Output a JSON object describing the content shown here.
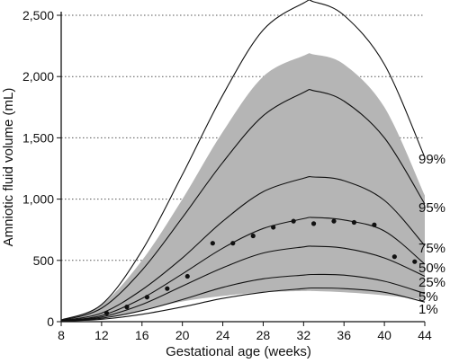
{
  "chart_data": {
    "type": "line",
    "xlabel": "Gestational age (weeks)",
    "ylabel": "Amniotic fluid volume (mL)",
    "xlim": [
      8,
      44
    ],
    "ylim": [
      0,
      2500
    ],
    "x_ticks": [
      "8",
      "12",
      "16",
      "20",
      "24",
      "28",
      "32",
      "36",
      "40",
      "44"
    ],
    "y_ticks": [
      "0",
      "500",
      "1,000",
      "1,500",
      "2,000",
      "2,500"
    ],
    "grid": "horizontal dotted",
    "colors": {
      "shaded_band": "#b5b5b5",
      "lines": "#111111",
      "points": "#111111"
    },
    "shaded_band": {
      "x": [
        8,
        12,
        16,
        20,
        24,
        28,
        32,
        33,
        36,
        40,
        44
      ],
      "lower": [
        5,
        30,
        90,
        165,
        210,
        240,
        250,
        250,
        240,
        215,
        180
      ],
      "upper": [
        15,
        140,
        500,
        1000,
        1550,
        2000,
        2170,
        2180,
        2100,
        1750,
        1030
      ]
    },
    "series": [
      {
        "name": "99%",
        "x": [
          8,
          12,
          16,
          20,
          24,
          28,
          32,
          33,
          36,
          40,
          44
        ],
        "values": [
          15,
          140,
          580,
          1200,
          1850,
          2380,
          2600,
          2610,
          2500,
          2100,
          1340
        ]
      },
      {
        "name": "95%",
        "x": [
          8,
          12,
          16,
          20,
          24,
          28,
          32,
          33,
          36,
          40,
          44
        ],
        "values": [
          10,
          110,
          420,
          850,
          1300,
          1680,
          1870,
          1885,
          1800,
          1500,
          960
        ]
      },
      {
        "name": "75%",
        "x": [
          8,
          12,
          16,
          20,
          24,
          28,
          32,
          33,
          36,
          40,
          44
        ],
        "values": [
          8,
          70,
          260,
          520,
          820,
          1060,
          1170,
          1180,
          1150,
          990,
          620
        ]
      },
      {
        "name": "50%",
        "x": [
          8,
          12,
          16,
          20,
          24,
          28,
          32,
          33,
          36,
          40,
          44
        ],
        "values": [
          6,
          50,
          190,
          390,
          600,
          760,
          840,
          850,
          830,
          740,
          470
        ]
      },
      {
        "name": "25%",
        "x": [
          8,
          12,
          16,
          20,
          24,
          28,
          32,
          33,
          36,
          40,
          44
        ],
        "values": [
          5,
          38,
          140,
          290,
          440,
          560,
          610,
          615,
          600,
          520,
          370
        ]
      },
      {
        "name": "5%",
        "x": [
          8,
          12,
          16,
          20,
          24,
          28,
          32,
          33,
          36,
          40,
          44
        ],
        "values": [
          4,
          28,
          90,
          180,
          280,
          350,
          380,
          385,
          380,
          330,
          230
        ]
      },
      {
        "name": "1%",
        "x": [
          8,
          12,
          16,
          20,
          24,
          28,
          32,
          33,
          36,
          40,
          44
        ],
        "values": [
          3,
          20,
          60,
          120,
          190,
          240,
          270,
          275,
          270,
          240,
          160
        ]
      }
    ],
    "points": {
      "x": [
        12.5,
        14.5,
        16.5,
        18.5,
        20.5,
        23,
        25,
        27,
        29,
        31,
        33,
        35,
        37,
        39,
        41,
        43
      ],
      "y": [
        70,
        120,
        200,
        270,
        370,
        640,
        640,
        700,
        770,
        820,
        800,
        820,
        810,
        790,
        530,
        490
      ]
    }
  }
}
